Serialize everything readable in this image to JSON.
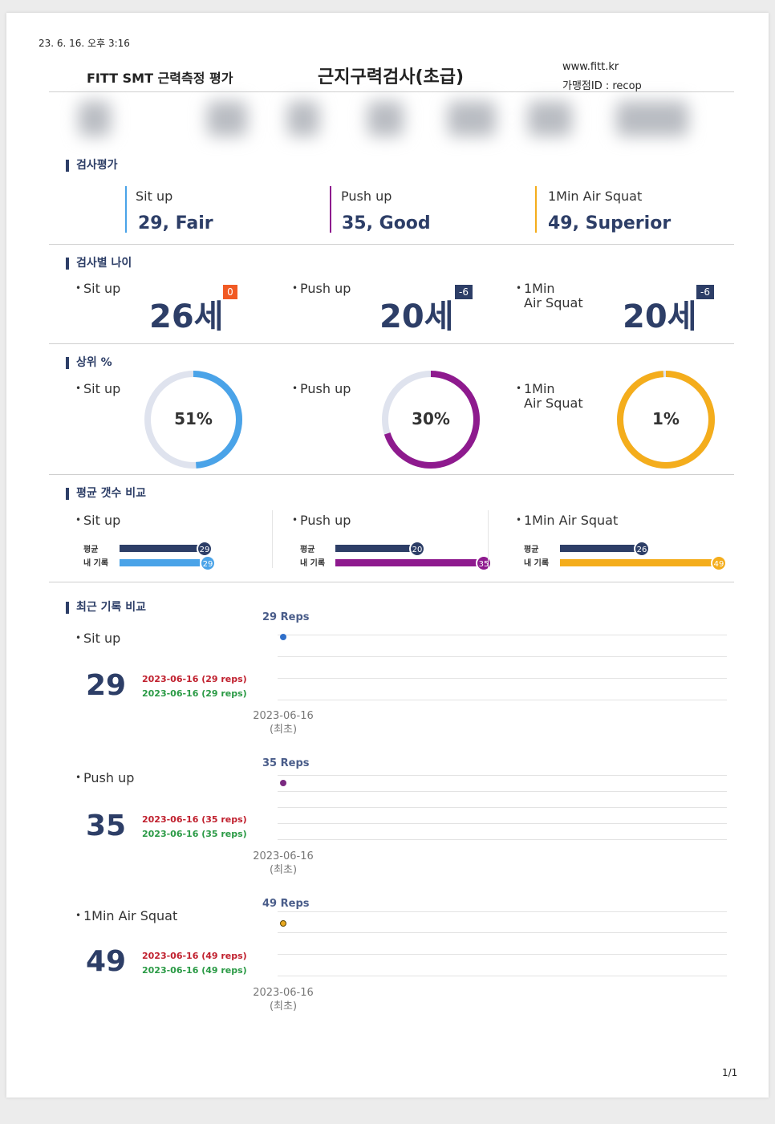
{
  "print_timestamp": "23. 6. 16. 오후 3:16",
  "header": {
    "left": "FITT SMT 근력측정 평가",
    "center": "근지구력검사(초급)",
    "site": "www.fitt.kr",
    "store_id": "가맹점ID : recop"
  },
  "sections": {
    "evaluation": "검사평가",
    "age": "검사별 나이",
    "percentile": "상위 %",
    "average": "평균 갯수 비교",
    "recent": "최근 기록 비교"
  },
  "evaluation": [
    {
      "name": "Sit up",
      "value": "29, Fair",
      "color": "#4aa3e8"
    },
    {
      "name": "Push up",
      "value": "35, Good",
      "color": "#8e1a8e"
    },
    {
      "name": "1Min Air Squat",
      "value": "49, Superior",
      "color": "#f4ad1c"
    }
  ],
  "ages": [
    {
      "name": "Sit up",
      "age": "26세",
      "diff": "0",
      "badge_color": "#f15a24"
    },
    {
      "name": "Push up",
      "age": "20세",
      "diff": "-6",
      "badge_color": "#2d3e67"
    },
    {
      "name_line1": "1Min",
      "name_line2": "Air Squat",
      "age": "20세",
      "diff": "-6",
      "badge_color": "#2d3e67"
    }
  ],
  "percentiles": [
    {
      "name": "Sit up",
      "label": "51%",
      "fraction": 0.49,
      "color": "#4aa3e8"
    },
    {
      "name": "Push up",
      "label": "30%",
      "fraction": 0.7,
      "color": "#8e1a8e"
    },
    {
      "name_line1": "1Min",
      "name_line2": "Air Squat",
      "label": "1%",
      "fraction": 0.99,
      "color": "#f4ad1c"
    }
  ],
  "averages": {
    "avg_label": "평균",
    "mine_label": "내 기록",
    "items": [
      {
        "name": "Sit up",
        "avg": "29",
        "mine": "29",
        "color": "#4aa3e8"
      },
      {
        "name": "Push up",
        "avg": "20",
        "mine": "35",
        "color": "#8e1a8e"
      },
      {
        "name": "1Min Air Squat",
        "avg": "26",
        "mine": "49",
        "color": "#f4ad1c"
      }
    ]
  },
  "recent": [
    {
      "name": "Sit up",
      "value": "29",
      "hist_red": "2023-06-16 (29 reps)",
      "hist_green": "2023-06-16 (29 reps)",
      "reps_label": "29 Reps",
      "date": "2023-06-16",
      "date_note": "(최초)",
      "color": "#2f6fc9"
    },
    {
      "name": "Push up",
      "value": "35",
      "hist_red": "2023-06-16 (35 reps)",
      "hist_green": "2023-06-16 (35 reps)",
      "reps_label": "35 Reps",
      "date": "2023-06-16",
      "date_note": "(최초)",
      "color": "#7a2a80"
    },
    {
      "name": "1Min Air Squat",
      "value": "49",
      "hist_red": "2023-06-16 (49 reps)",
      "hist_green": "2023-06-16 (49 reps)",
      "reps_label": "49 Reps",
      "date": "2023-06-16",
      "date_note": "(최초)",
      "color": "#e8a820"
    }
  ],
  "page_number": "1/1",
  "colors": {
    "navy": "#2d3e67",
    "ring_track": "#dfe3ee"
  }
}
